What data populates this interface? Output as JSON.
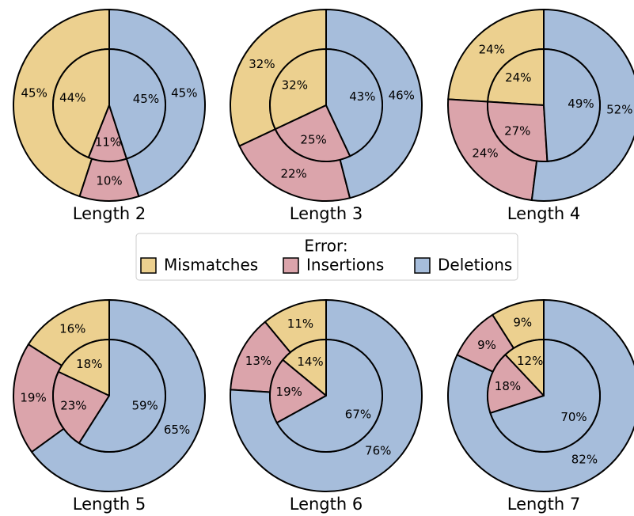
{
  "chart_data": [
    {
      "type": "pie",
      "title": "Length 2",
      "outer": {
        "values": [
          45,
          10,
          45
        ],
        "value_labels": [
          "45%",
          "10%",
          "45%"
        ]
      },
      "inner": {
        "values": [
          44,
          11,
          45
        ],
        "value_labels": [
          "44%",
          "11%",
          "45%"
        ]
      }
    },
    {
      "type": "pie",
      "title": "Length 3",
      "outer": {
        "values": [
          32,
          22,
          46
        ],
        "value_labels": [
          "32%",
          "22%",
          "46%"
        ]
      },
      "inner": {
        "values": [
          32,
          25,
          43
        ],
        "value_labels": [
          "32%",
          "25%",
          "43%"
        ]
      }
    },
    {
      "type": "pie",
      "title": "Length 4",
      "outer": {
        "values": [
          24,
          24,
          52
        ],
        "value_labels": [
          "24%",
          "24%",
          "52%"
        ]
      },
      "inner": {
        "values": [
          24,
          27,
          49
        ],
        "value_labels": [
          "24%",
          "27%",
          "49%"
        ]
      }
    },
    {
      "type": "pie",
      "title": "Length 5",
      "outer": {
        "values": [
          16,
          19,
          65
        ],
        "value_labels": [
          "16%",
          "19%",
          "65%"
        ]
      },
      "inner": {
        "values": [
          18,
          23,
          59
        ],
        "value_labels": [
          "18%",
          "23%",
          "59%"
        ]
      }
    },
    {
      "type": "pie",
      "title": "Length 6",
      "outer": {
        "values": [
          11,
          13,
          76
        ],
        "value_labels": [
          "11%",
          "13%",
          "76%"
        ]
      },
      "inner": {
        "values": [
          14,
          19,
          67
        ],
        "value_labels": [
          "14%",
          "19%",
          "67%"
        ]
      }
    },
    {
      "type": "pie",
      "title": "Length 7",
      "outer": {
        "values": [
          9,
          9,
          82
        ],
        "value_labels": [
          "9%",
          "9%",
          "82%"
        ]
      },
      "inner": {
        "values": [
          12,
          18,
          70
        ],
        "value_labels": [
          "12%",
          "18%",
          "70%"
        ]
      }
    }
  ],
  "legend": {
    "title": "Error:",
    "categories": [
      "Mismatches",
      "Insertions",
      "Deletions"
    ],
    "colors": [
      "#ecd08f",
      "#dba4ab",
      "#a6bddb"
    ]
  }
}
